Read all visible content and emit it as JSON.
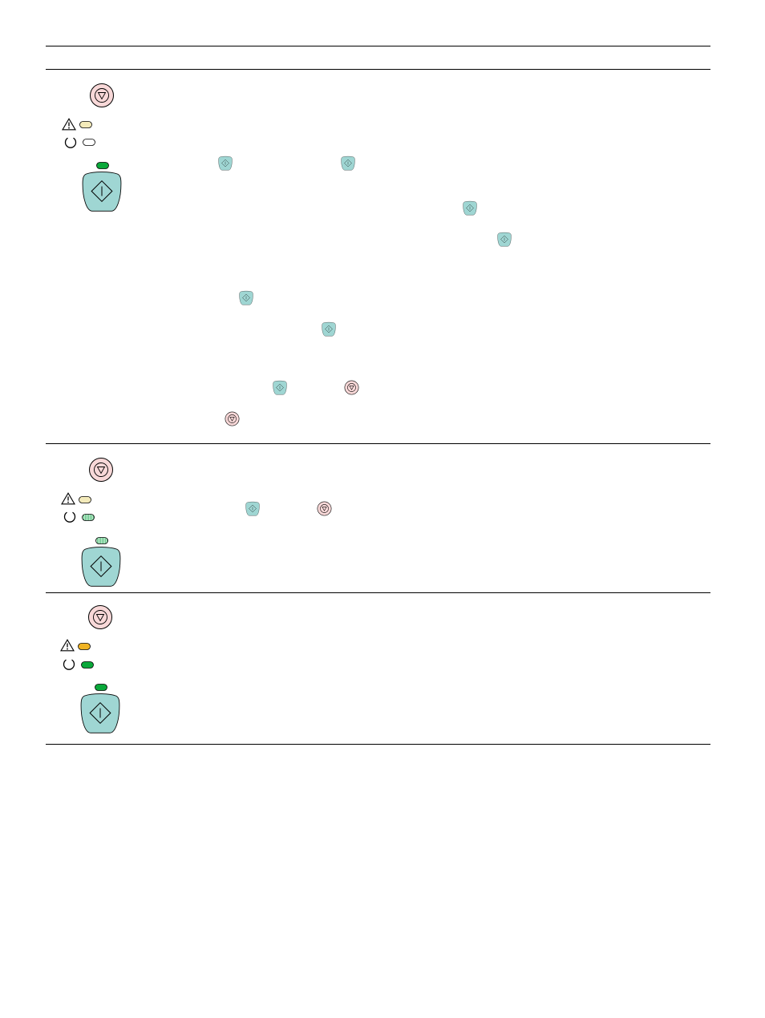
{
  "document": {
    "header_row": {},
    "rows": [
      {
        "id": "row-1",
        "cancel_button_icon": "cancel-button-icon",
        "attention_light": {
          "icon": "warning-icon",
          "state": "off",
          "color": "#f3eaba"
        },
        "ready_light": {
          "icon": "ready-icon",
          "state": "off",
          "color": "#ffffff"
        },
        "go_light": {
          "state": "on",
          "color": "#0aa83a"
        },
        "go_button_icon": "go-button-icon",
        "inline_go_icons": 7,
        "inline_cancel_icons": 2
      },
      {
        "id": "row-2",
        "cancel_button_icon": "cancel-button-icon",
        "attention_light": {
          "icon": "warning-icon",
          "state": "off",
          "color": "#f3eaba"
        },
        "ready_light": {
          "icon": "ready-icon",
          "state": "blinking",
          "color": "#9ad8b2"
        },
        "go_light": {
          "state": "blinking",
          "color": "#9ad8b2"
        },
        "go_button_icon": "go-button-icon",
        "inline_go_icons": 1,
        "inline_cancel_icons": 1
      },
      {
        "id": "row-3",
        "cancel_button_icon": "cancel-button-icon",
        "attention_light": {
          "icon": "warning-icon",
          "state": "on",
          "color": "#f0b323"
        },
        "ready_light": {
          "icon": "ready-icon",
          "state": "on",
          "color": "#0aa83a"
        },
        "go_light": {
          "state": "on",
          "color": "#0aa83a"
        },
        "go_button_icon": "go-button-icon"
      }
    ],
    "colors": {
      "go_button_fill": "#9fd6d3",
      "cancel_button_fill": "#f8d8d8",
      "rule": "#000000"
    }
  }
}
